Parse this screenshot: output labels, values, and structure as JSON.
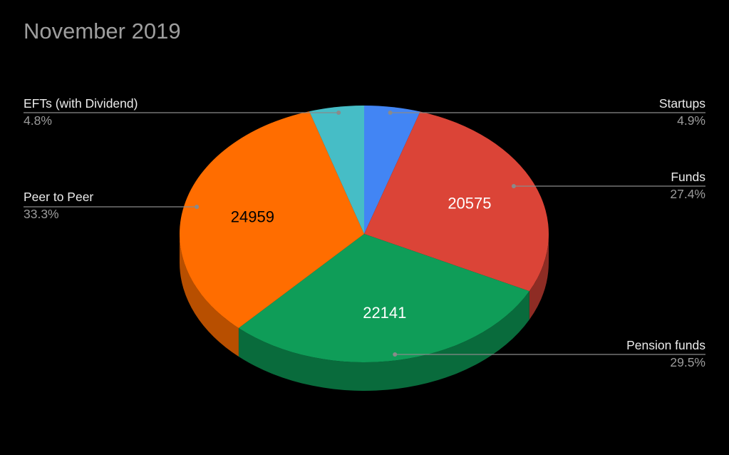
{
  "chart_data": {
    "type": "pie",
    "title": "November 2019",
    "three_d": true,
    "legend": "labels-with-leader-lines",
    "slices": [
      {
        "label": "Startups",
        "value": 3680,
        "percent": "4.9%",
        "color": "#4285f4",
        "value_label": ""
      },
      {
        "label": "Funds",
        "value": 20575,
        "percent": "27.4%",
        "color": "#db4437",
        "value_label": "20575"
      },
      {
        "label": "Pension funds",
        "value": 22141,
        "percent": "29.5%",
        "color": "#0f9d58",
        "value_label": "22141"
      },
      {
        "label": "Peer to Peer",
        "value": 24959,
        "percent": "33.3%",
        "color": "#ff6d00",
        "value_label": "24959"
      },
      {
        "label": "EFTs (with Dividend)",
        "value": 3600,
        "percent": "4.8%",
        "color": "#46bdc6",
        "value_label": ""
      }
    ],
    "label_colors": {
      "Funds": "#ffffff",
      "Pension funds": "#ffffff",
      "Peer to Peer": "#000000"
    },
    "side_colors": {
      "Startups": "#2a5aa8",
      "Funds": "#8e2c24",
      "Pension funds": "#096b3c",
      "Peer to Peer": "#b84f00",
      "EFTs (with Dividend)": "#2f8a91"
    },
    "leader_color": "#8a8a8a"
  }
}
